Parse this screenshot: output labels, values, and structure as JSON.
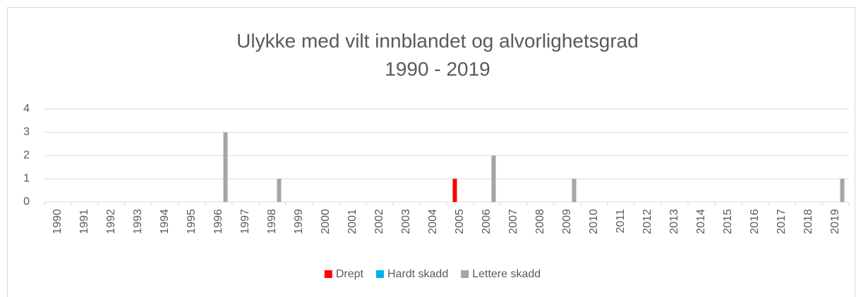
{
  "chart_data": {
    "type": "bar",
    "title": "Ulykke med vilt innblandet og alvorlighetsgrad",
    "subtitle": "1990 - 2019",
    "categories": [
      "1990",
      "1991",
      "1992",
      "1993",
      "1994",
      "1995",
      "1996",
      "1997",
      "1998",
      "1999",
      "2000",
      "2001",
      "2002",
      "2003",
      "2004",
      "2005",
      "2006",
      "2007",
      "2008",
      "2009",
      "2010",
      "2011",
      "2012",
      "2013",
      "2014",
      "2015",
      "2016",
      "2017",
      "2018",
      "2019"
    ],
    "series": [
      {
        "name": "Drept",
        "color": "#ff0000",
        "values": [
          0,
          0,
          0,
          0,
          0,
          0,
          0,
          0,
          0,
          0,
          0,
          0,
          0,
          0,
          0,
          1,
          0,
          0,
          0,
          0,
          0,
          0,
          0,
          0,
          0,
          0,
          0,
          0,
          0,
          0
        ]
      },
      {
        "name": "Hardt skadd",
        "color": "#00b0f0",
        "values": [
          0,
          0,
          0,
          0,
          0,
          0,
          0,
          0,
          0,
          0,
          0,
          0,
          0,
          0,
          0,
          0,
          0,
          0,
          0,
          0,
          0,
          0,
          0,
          0,
          0,
          0,
          0,
          0,
          0,
          0
        ]
      },
      {
        "name": "Lettere skadd",
        "color": "#a5a5a5",
        "values": [
          0,
          0,
          0,
          0,
          0,
          0,
          3,
          0,
          1,
          0,
          0,
          0,
          0,
          0,
          0,
          0,
          2,
          0,
          0,
          1,
          0,
          0,
          0,
          0,
          0,
          0,
          0,
          0,
          0,
          1
        ]
      }
    ],
    "ylim": [
      0,
      4
    ],
    "yticks": [
      0,
      1,
      2,
      3,
      4
    ],
    "grid": true,
    "legend": "bottom"
  }
}
